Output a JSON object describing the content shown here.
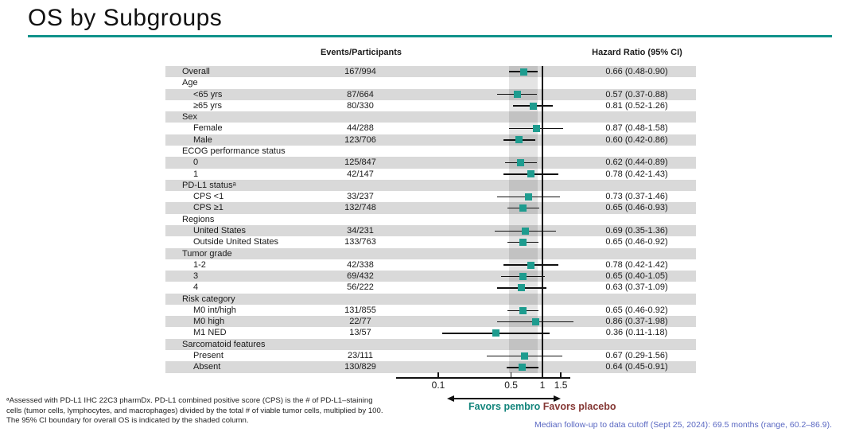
{
  "slide": {
    "title": "OS by Subgroups",
    "footnote_lines": [
      "ᵃAssessed with PD-L1 IHC 22C3 pharmDx. PD-L1 combined positive score (CPS) is the # of PD-L1–staining",
      "cells (tumor cells, lymphocytes, and macrophages) divided by the total # of viable tumor cells, multiplied by 100.",
      "The 95% CI boundary for overall OS is indicated by the shaded column."
    ],
    "median_note": "Median follow-up to data cutoff (Sept 25, 2024): 69.5 months (range, 60.2–86.9)."
  },
  "colors": {
    "accent_teal": "#10928A",
    "marker_teal": "#1E9C8F",
    "favors_pembro_teal": "#12847B",
    "favors_placebo_red": "#843734",
    "note_blue": "#5A68C2",
    "row_stripe_gray": "#D9D9D9"
  },
  "chart_data": {
    "type": "forest",
    "title": "OS by Subgroups",
    "column_headers": {
      "events": "Events/Participants",
      "hazard_ratio": "Hazard Ratio (95% CI)"
    },
    "x_axis": {
      "scale": "log",
      "tick_values": [
        0.1,
        0.5,
        1,
        1.5
      ],
      "tick_labels": [
        "0.1",
        "0.5",
        "1",
        "1.5"
      ],
      "reference_line": 1,
      "shaded_band_ci": [
        0.48,
        0.9
      ]
    },
    "legend": {
      "left_label": "Favors pembro",
      "right_label": "Favors placebo"
    },
    "rows": [
      {
        "label": "Overall",
        "indent": 0,
        "events": "167/994",
        "hr": 0.66,
        "lo": 0.48,
        "hi": 0.9,
        "hr_text": "0.66 (0.48-0.90)"
      },
      {
        "label": "Age",
        "indent": 0
      },
      {
        "label": "<65 yrs",
        "indent": 1,
        "events": "87/664",
        "hr": 0.57,
        "lo": 0.37,
        "hi": 0.88,
        "hr_text": "0.57 (0.37-0.88)"
      },
      {
        "label": "≥65 yrs",
        "indent": 1,
        "events": "80/330",
        "hr": 0.81,
        "lo": 0.52,
        "hi": 1.26,
        "hr_text": "0.81 (0.52-1.26)"
      },
      {
        "label": "Sex",
        "indent": 0
      },
      {
        "label": "Female",
        "indent": 1,
        "events": "44/288",
        "hr": 0.87,
        "lo": 0.48,
        "hi": 1.58,
        "hr_text": "0.87 (0.48-1.58)"
      },
      {
        "label": "Male",
        "indent": 1,
        "events": "123/706",
        "hr": 0.6,
        "lo": 0.42,
        "hi": 0.86,
        "hr_text": "0.60 (0.42-0.86)"
      },
      {
        "label": "ECOG performance status",
        "indent": 0
      },
      {
        "label": "0",
        "indent": 1,
        "events": "125/847",
        "hr": 0.62,
        "lo": 0.44,
        "hi": 0.89,
        "hr_text": "0.62 (0.44-0.89)"
      },
      {
        "label": "1",
        "indent": 1,
        "events": "42/147",
        "hr": 0.78,
        "lo": 0.42,
        "hi": 1.43,
        "hr_text": "0.78 (0.42-1.43)"
      },
      {
        "label": "PD-L1 statusᵃ",
        "indent": 0
      },
      {
        "label": "CPS <1",
        "indent": 1,
        "events": "33/237",
        "hr": 0.73,
        "lo": 0.37,
        "hi": 1.46,
        "hr_text": "0.73 (0.37-1.46)"
      },
      {
        "label": "CPS ≥1",
        "indent": 1,
        "events": "132/748",
        "hr": 0.65,
        "lo": 0.46,
        "hi": 0.93,
        "hr_text": "0.65 (0.46-0.93)"
      },
      {
        "label": "Regions",
        "indent": 0
      },
      {
        "label": "United States",
        "indent": 1,
        "events": "34/231",
        "hr": 0.69,
        "lo": 0.35,
        "hi": 1.36,
        "hr_text": "0.69 (0.35-1.36)"
      },
      {
        "label": "Outside United States",
        "indent": 1,
        "events": "133/763",
        "hr": 0.65,
        "lo": 0.46,
        "hi": 0.92,
        "hr_text": "0.65 (0.46-0.92)"
      },
      {
        "label": "Tumor grade",
        "indent": 0
      },
      {
        "label": "1-2",
        "indent": 1,
        "events": "42/338",
        "hr": 0.78,
        "lo": 0.42,
        "hi": 1.42,
        "hr_text": "0.78 (0.42-1.42)"
      },
      {
        "label": "3",
        "indent": 1,
        "events": "69/432",
        "hr": 0.65,
        "lo": 0.4,
        "hi": 1.05,
        "hr_text": "0.65 (0.40-1.05)"
      },
      {
        "label": "4",
        "indent": 1,
        "events": "56/222",
        "hr": 0.63,
        "lo": 0.37,
        "hi": 1.09,
        "hr_text": "0.63 (0.37-1.09)"
      },
      {
        "label": "Risk category",
        "indent": 0
      },
      {
        "label": "M0 int/high",
        "indent": 1,
        "events": "131/855",
        "hr": 0.65,
        "lo": 0.46,
        "hi": 0.92,
        "hr_text": "0.65 (0.46-0.92)"
      },
      {
        "label": "M0 high",
        "indent": 1,
        "events": "22/77",
        "hr": 0.86,
        "lo": 0.37,
        "hi": 1.98,
        "hr_text": "0.86 (0.37-1.98)"
      },
      {
        "label": "M1 NED",
        "indent": 1,
        "events": "13/57",
        "hr": 0.36,
        "lo": 0.11,
        "hi": 1.18,
        "hr_text": "0.36 (0.11-1.18)"
      },
      {
        "label": "Sarcomatoid features",
        "indent": 0
      },
      {
        "label": "Present",
        "indent": 1,
        "events": "23/111",
        "hr": 0.67,
        "lo": 0.29,
        "hi": 1.56,
        "hr_text": "0.67 (0.29-1.56)"
      },
      {
        "label": "Absent",
        "indent": 1,
        "events": "130/829",
        "hr": 0.64,
        "lo": 0.45,
        "hi": 0.91,
        "hr_text": "0.64 (0.45-0.91)"
      }
    ]
  }
}
